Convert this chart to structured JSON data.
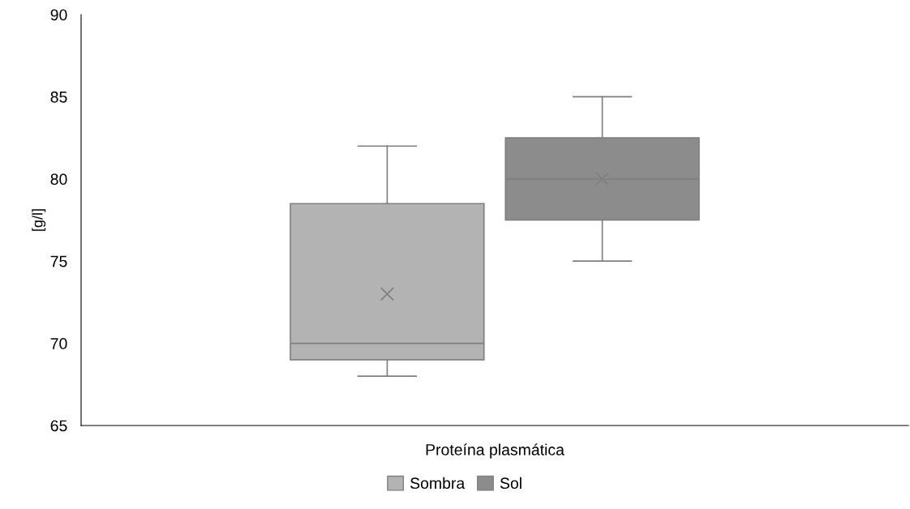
{
  "chart_data": {
    "type": "box",
    "ylabel": "[g/l]",
    "categories": [
      "Proteína plasmática"
    ],
    "ylim": [
      65,
      90
    ],
    "yticks": [
      65,
      70,
      75,
      80,
      85,
      90
    ],
    "grid": false,
    "legend": "bottom",
    "marker": "cross",
    "series": [
      {
        "name": "Sombra",
        "color": "#b3b3b3",
        "boxes": [
          {
            "low": 68,
            "q1": 69,
            "median": 70,
            "q3": 78.5,
            "high": 82,
            "mean": 73
          }
        ]
      },
      {
        "name": "Sol",
        "color": "#8c8c8c",
        "boxes": [
          {
            "low": 75,
            "q1": 77.5,
            "median": 80,
            "q3": 82.5,
            "high": 85,
            "mean": 80
          }
        ]
      }
    ]
  }
}
